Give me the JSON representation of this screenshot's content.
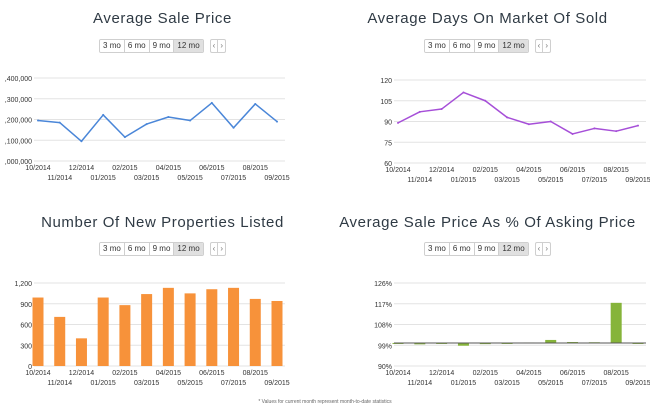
{
  "range_options": [
    "3 mo",
    "6 mo",
    "9 mo",
    "12 mo"
  ],
  "range_selected": "12 mo",
  "nav": {
    "prev": "‹",
    "next": "›"
  },
  "footnote": "* Values for current month represent month-to-date statistics",
  "chart_data": [
    {
      "type": "line",
      "title": "Average Sale Price",
      "categories": [
        "10/2014",
        "11/2014",
        "12/2014",
        "01/2015",
        "02/2015",
        "03/2015",
        "04/2015",
        "05/2015",
        "06/2015",
        "07/2015",
        "08/2015",
        "09/2015"
      ],
      "series": [
        {
          "values": [
            1195000,
            1185000,
            1095000,
            1222000,
            1115000,
            1178000,
            1212000,
            1195000,
            1280000,
            1160000,
            1275000,
            1190000
          ]
        }
      ],
      "yticks": [
        1000000,
        1100000,
        1200000,
        1300000,
        1400000
      ],
      "ytick_labels": [
        ",000,000",
        ",100,000",
        ",200,000",
        ",300,000",
        ",400,000"
      ],
      "ylim": [
        1000000,
        1400000
      ],
      "grid": true,
      "color": "#4a86d8"
    },
    {
      "type": "line",
      "title": "Average Days On Market Of Sold",
      "categories": [
        "10/2014",
        "11/2014",
        "12/2014",
        "01/2015",
        "02/2015",
        "03/2015",
        "04/2015",
        "05/2015",
        "06/2015",
        "07/2015",
        "08/2015",
        "09/2015"
      ],
      "series": [
        {
          "values": [
            89,
            97,
            99,
            111,
            105,
            93,
            88,
            90,
            81,
            85,
            83,
            87
          ]
        }
      ],
      "yticks": [
        60,
        75,
        90,
        105,
        120
      ],
      "ytick_labels": [
        "60",
        "75",
        "90",
        "105",
        "120"
      ],
      "ylim": [
        60,
        120
      ],
      "grid": true,
      "color": "#a64fd8"
    },
    {
      "type": "bar",
      "title": "Number Of New Properties Listed",
      "categories": [
        "10/2014",
        "11/2014",
        "12/2014",
        "01/2015",
        "02/2015",
        "03/2015",
        "04/2015",
        "05/2015",
        "06/2015",
        "07/2015",
        "08/2015",
        "09/2015"
      ],
      "series": [
        {
          "values": [
            990,
            710,
            400,
            990,
            880,
            1040,
            1130,
            1050,
            1110,
            1130,
            970,
            940
          ]
        }
      ],
      "yticks": [
        0,
        300,
        600,
        900,
        1200
      ],
      "ytick_labels": [
        "0",
        "300",
        "600",
        "900",
        "1,200"
      ],
      "ylim": [
        0,
        1200
      ],
      "grid": true,
      "color": "#f7923a"
    },
    {
      "type": "bar",
      "title": "Average Sale Price As % Of Asking Price",
      "categories": [
        "10/2014",
        "11/2014",
        "12/2014",
        "01/2015",
        "02/2015",
        "03/2015",
        "04/2015",
        "05/2015",
        "06/2015",
        "07/2015",
        "08/2015",
        "09/2015"
      ],
      "series": [
        {
          "values": [
            99.6,
            99.4,
            99.6,
            98.8,
            99.5,
            99.7,
            100.2,
            101.3,
            100.4,
            100.3,
            117.4,
            99.8
          ]
        }
      ],
      "baseline": 100,
      "yticks": [
        90,
        99,
        108,
        117,
        126
      ],
      "ytick_labels": [
        "90%",
        "99%",
        "108%",
        "117%",
        "126%"
      ],
      "ylim": [
        90,
        126
      ],
      "grid": true,
      "color": "#86b43a"
    }
  ]
}
